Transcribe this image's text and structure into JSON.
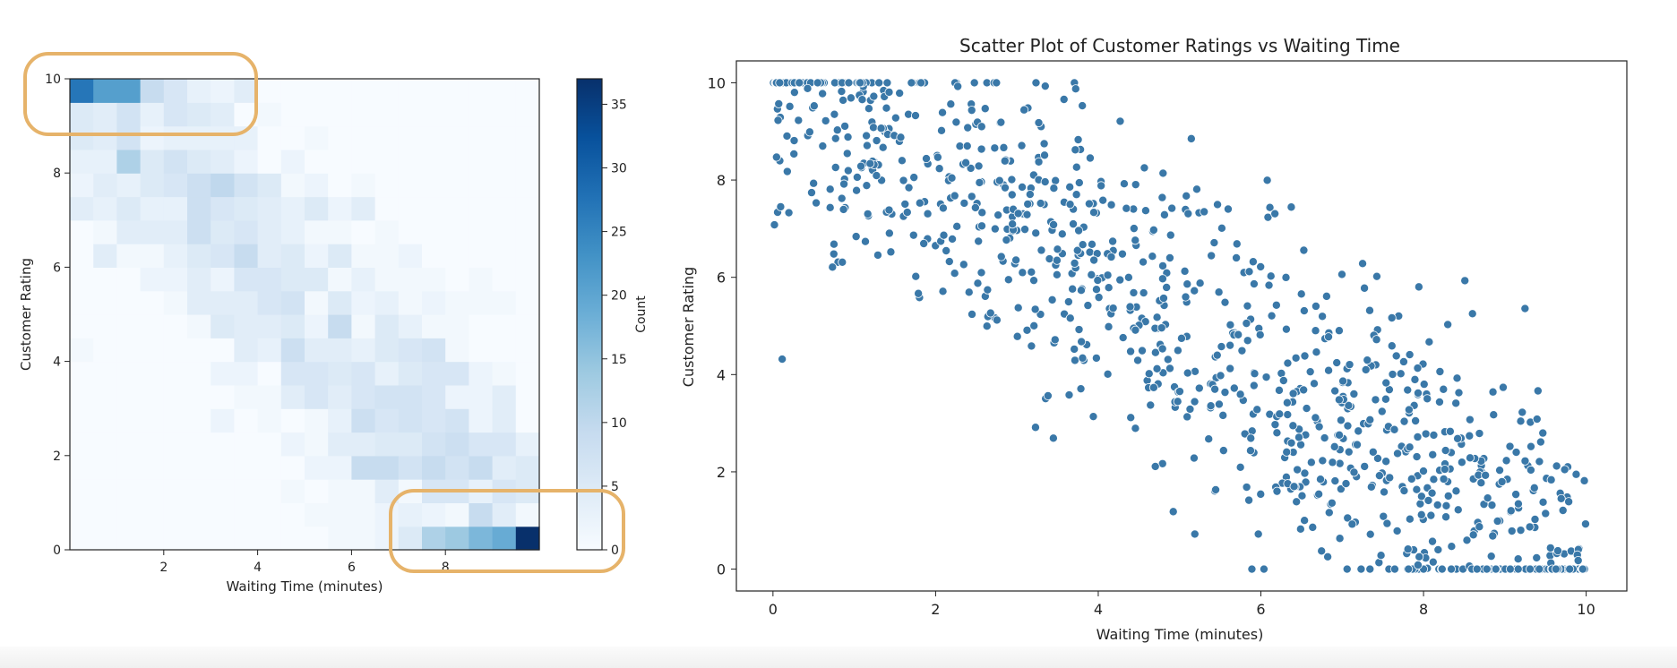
{
  "chart_data": [
    {
      "type": "heatmap",
      "title": "",
      "xlabel": "Waiting Time (minutes)",
      "ylabel": "Customer Rating",
      "x_ticks": [
        "2",
        "4",
        "6",
        "8"
      ],
      "y_ticks": [
        "0",
        "2",
        "4",
        "6",
        "8",
        "10"
      ],
      "xlim": [
        0,
        10
      ],
      "ylim": [
        0,
        10
      ],
      "bins": [
        20,
        20
      ],
      "colorbar": {
        "label": "Count",
        "ticks": [
          "0",
          "5",
          "10",
          "15",
          "20",
          "25",
          "30",
          "35"
        ],
        "vmax": 37
      },
      "colormap": [
        "#f7fbff",
        "#deebf7",
        "#c6dbef",
        "#9ecae1",
        "#6baed6",
        "#4292c6",
        "#2171b5",
        "#08519c",
        "#08306b"
      ],
      "highlights": [
        {
          "name": "top-left",
          "x_range": [
            0,
            4
          ],
          "y_range": [
            9,
            10
          ],
          "color": "#e6b36a"
        },
        {
          "name": "bottom-right",
          "x_range": [
            7,
            10
          ],
          "y_range": [
            0,
            1
          ],
          "color": "#e6b36a"
        }
      ]
    },
    {
      "type": "scatter",
      "title": "Scatter Plot of Customer Ratings vs Waiting Time",
      "xlabel": "Waiting Time (minutes)",
      "ylabel": "Customer Rating",
      "x_ticks": [
        "0",
        "2",
        "4",
        "6",
        "8",
        "10"
      ],
      "y_ticks": [
        "0",
        "2",
        "4",
        "6",
        "8",
        "10"
      ],
      "xlim": [
        -0.45,
        10.5
      ],
      "ylim": [
        -0.45,
        10.45
      ],
      "point_color": "#3a78a8",
      "n_points": 1000,
      "relationship": "rating ≈ 10 - waiting time, clipped to [0, 10]"
    }
  ]
}
